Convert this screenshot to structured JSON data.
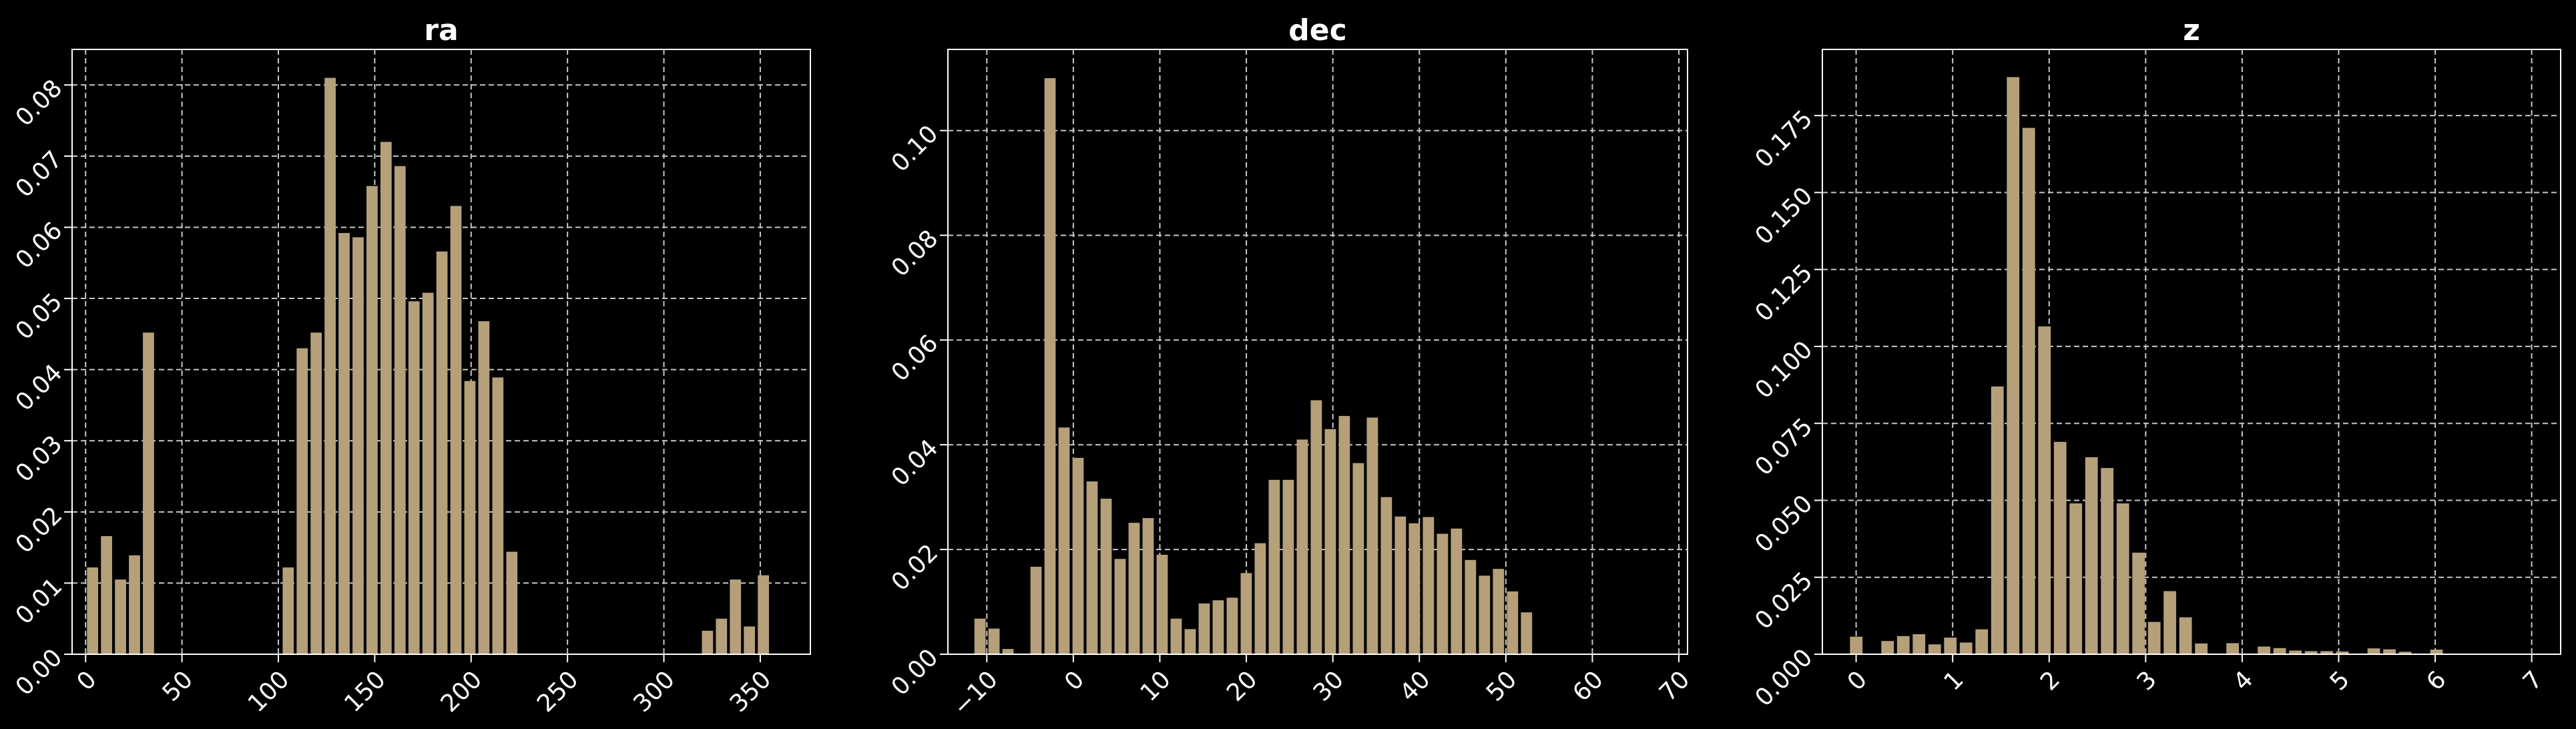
{
  "chart_data": [
    {
      "type": "bar",
      "title": "ra",
      "xlabel": "",
      "ylabel": "",
      "xlim": [
        -7,
        376
      ],
      "ylim": [
        0,
        0.085
      ],
      "xticks": [
        0,
        50,
        100,
        150,
        200,
        250,
        300,
        350
      ],
      "yticks": [
        0.0,
        0.01,
        0.02,
        0.03,
        0.04,
        0.05,
        0.06,
        0.07,
        0.08
      ],
      "ytick_labels": [
        "0.00",
        "0.01",
        "0.02",
        "0.03",
        "0.04",
        "0.05",
        "0.06",
        "0.07",
        "0.08"
      ],
      "bin_start": 0,
      "bin_width": 7.25,
      "values": [
        0.0122,
        0.0166,
        0.0105,
        0.0139,
        0.0452,
        0,
        0,
        0,
        0,
        0,
        0,
        0,
        0,
        0,
        0.0122,
        0.043,
        0.0452,
        0.081,
        0.0592,
        0.0586,
        0.0658,
        0.072,
        0.0686,
        0.0496,
        0.0508,
        0.0566,
        0.063,
        0.0384,
        0.0468,
        0.0389,
        0.0144,
        0,
        0,
        0,
        0,
        0,
        0,
        0,
        0,
        0,
        0,
        0,
        0,
        0,
        0.0033,
        0.005,
        0.0105,
        0.0039,
        0.0111
      ],
      "grid": true,
      "bar_color": "#b5a07a"
    },
    {
      "type": "bar",
      "title": "dec",
      "xlabel": "",
      "ylabel": "",
      "xlim": [
        -14.5,
        71
      ],
      "ylim": [
        0,
        0.1155
      ],
      "xticks": [
        -10,
        0,
        10,
        20,
        30,
        40,
        50,
        60,
        70
      ],
      "xtick_labels": [
        "−10",
        "0",
        "10",
        "20",
        "30",
        "40",
        "50",
        "60",
        "70"
      ],
      "yticks": [
        0.0,
        0.02,
        0.04,
        0.06,
        0.08,
        0.1
      ],
      "ytick_labels": [
        "0.00",
        "0.02",
        "0.04",
        "0.06",
        "0.08",
        "0.10"
      ],
      "bin_start": -11.6,
      "bin_width": 1.62,
      "values": [
        0.0068,
        0.0049,
        0.001,
        0,
        0.0167,
        0.11,
        0.0433,
        0.0375,
        0.033,
        0.0297,
        0.0182,
        0.0251,
        0.026,
        0.019,
        0.0068,
        0.0048,
        0.0097,
        0.0103,
        0.0108,
        0.0155,
        0.0212,
        0.0333,
        0.0333,
        0.041,
        0.0485,
        0.043,
        0.0455,
        0.0365,
        0.0452,
        0.03,
        0.0263,
        0.025,
        0.0262,
        0.023,
        0.024,
        0.018,
        0.015,
        0.0163,
        0.012,
        0.008
      ],
      "grid": true,
      "bar_color": "#b5a07a"
    },
    {
      "type": "bar",
      "title": "z",
      "xlabel": "",
      "ylabel": "",
      "xlim": [
        -0.35,
        7.3
      ],
      "ylim": [
        0,
        0.1965
      ],
      "xticks": [
        0,
        1,
        2,
        3,
        4,
        5,
        6,
        7
      ],
      "yticks": [
        0.0,
        0.025,
        0.05,
        0.075,
        0.1,
        0.125,
        0.15,
        0.175
      ],
      "ytick_labels": [
        "0.000",
        "0.025",
        "0.050",
        "0.075",
        "0.100",
        "0.125",
        "0.150",
        "0.175"
      ],
      "bin_start": -0.08,
      "bin_width": 0.1625,
      "values": [
        0.0057,
        0,
        0.0043,
        0.0059,
        0.0065,
        0.0032,
        0.0054,
        0.0038,
        0.0081,
        0.087,
        0.1875,
        0.171,
        0.1065,
        0.069,
        0.049,
        0.064,
        0.0605,
        0.049,
        0.033,
        0.0105,
        0.0205,
        0.012,
        0.0035,
        0,
        0.0036,
        0,
        0.0025,
        0.002,
        0.0012,
        0.001,
        0.001,
        0.0009,
        0,
        0.0019,
        0.0016,
        0.0008,
        0,
        0.0015,
        0,
        0
      ],
      "grid": true,
      "bar_color": "#b5a07a"
    }
  ]
}
